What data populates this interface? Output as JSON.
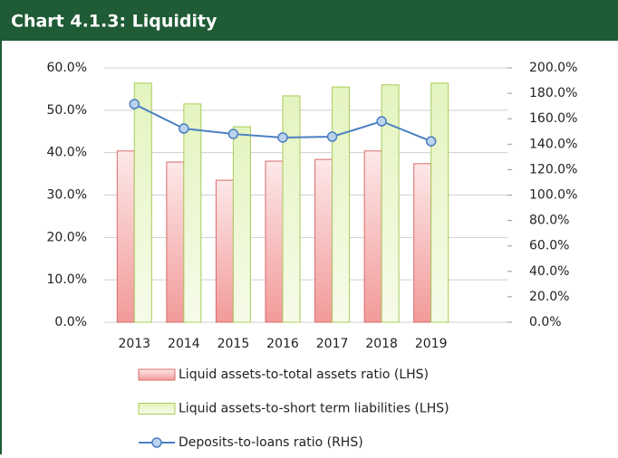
{
  "chart_data": {
    "type": "bar_line",
    "title": "Chart 4.1.3: Liquidity",
    "categories": [
      "2013",
      "2014",
      "2015",
      "2016",
      "2017",
      "2018",
      "2019"
    ],
    "series": [
      {
        "name": "Liquid assets-to-total assets ratio (LHS)",
        "color": "#f4a6a6",
        "type": "bar",
        "values": [
          40.4,
          37.8,
          33.5,
          38.0,
          38.4,
          40.4,
          37.4
        ]
      },
      {
        "name": "Liquid assets-to-short term liabilities (LHS)",
        "color": "#d8efa8",
        "type": "bar",
        "values": [
          56.4,
          51.5,
          46.1,
          53.4,
          55.5,
          56.0,
          56.4
        ]
      },
      {
        "name": "Deposits-to-loans ratio (RHS)",
        "color": "#4a7fc1",
        "type": "line",
        "axis": "y2",
        "values": [
          171.5,
          152.3,
          148.0,
          145.2,
          145.9,
          158.0,
          142.3
        ]
      }
    ],
    "ylim": [
      0,
      60
    ],
    "yticks": [
      {
        "value": 0,
        "label": "0.0%"
      },
      {
        "value": 10,
        "label": "10.0%"
      },
      {
        "value": 20,
        "label": "20.0%"
      },
      {
        "value": 30,
        "label": "30.0%"
      },
      {
        "value": 40,
        "label": "40.0%"
      },
      {
        "value": 50,
        "label": "50.0%"
      },
      {
        "value": 60,
        "label": "60.0%"
      }
    ],
    "y2lim": [
      0,
      200
    ],
    "y2ticks": [
      {
        "value": 0,
        "label": "0.0%"
      },
      {
        "value": 20,
        "label": "20.0%"
      },
      {
        "value": 40,
        "label": "40.0%"
      },
      {
        "value": 60,
        "label": "60.0%"
      },
      {
        "value": 80,
        "label": "80.0%"
      },
      {
        "value": 100,
        "label": "100.0%"
      },
      {
        "value": 120,
        "label": "120.0%"
      },
      {
        "value": 140,
        "label": "140.0%"
      },
      {
        "value": 160,
        "label": "160.0%"
      },
      {
        "value": 180,
        "label": "180.0%"
      },
      {
        "value": 200,
        "label": "200.0%"
      }
    ],
    "grid": true
  }
}
